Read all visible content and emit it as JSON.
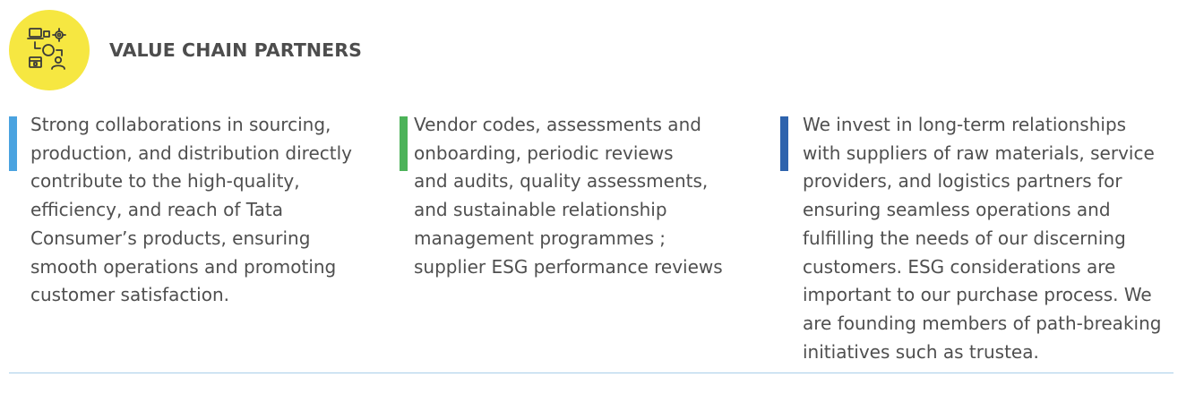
{
  "header": {
    "icon": "value-chain-icon",
    "badge_color": "#f6e741",
    "title": "VALUE CHAIN PARTNERS"
  },
  "columns": [
    {
      "accent": "#4aa3e0",
      "lines": [
        "Strong collaborations in sourcing,",
        "production, and distribution directly",
        "contribute to the high-quality,",
        "efficiency, and reach of Tata",
        "Consumer’s products, ensuring",
        "smooth operations and promoting",
        "customer satisfaction."
      ]
    },
    {
      "accent": "#4cb359",
      "lines": [
        "Vendor codes, assessments and",
        "onboarding, periodic reviews",
        "and audits, quality assessments,",
        "and sustainable relationship",
        "management programmes ;",
        "supplier ESG performance reviews"
      ]
    },
    {
      "accent": "#2e63ad",
      "lines": [
        "We invest in long-term relationships",
        "with suppliers of raw materials, service",
        "providers, and logistics partners for",
        "ensuring seamless operations and",
        "fulfilling the needs of our discerning",
        "customers. ESG considerations are",
        "important to our purchase process. We",
        "are founding members of path-breaking",
        "initiatives such as trustea."
      ]
    }
  ],
  "divider_color": "#a9cfe9"
}
